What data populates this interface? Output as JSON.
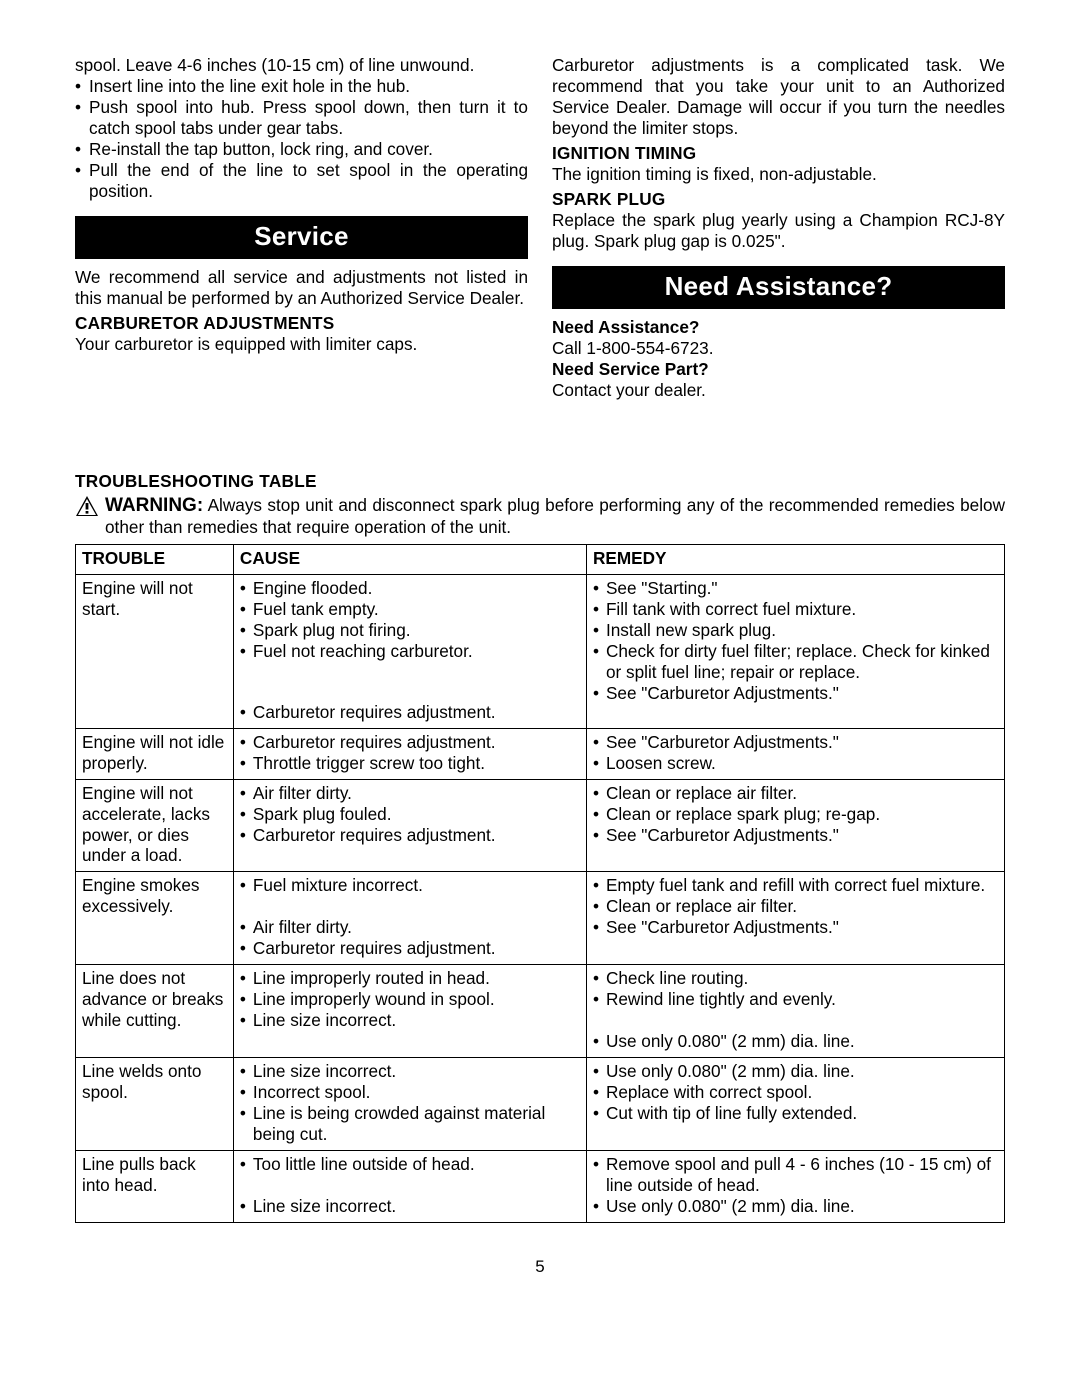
{
  "leftCol": {
    "continuation": "spool. Leave 4-6 inches (10-15 cm) of line unwound.",
    "bullets": [
      "Insert line into the line exit hole in the hub.",
      "Push spool into hub. Press spool down, then turn it to catch spool tabs under gear tabs.",
      "Re-install the tap button, lock ring, and cover.",
      "Pull the end of the line to set spool in the operating position."
    ],
    "serviceBar": "Service",
    "serviceText": "We recommend all service and adjustments not listed in this manual be performed by an Authorized Service Dealer.",
    "carbHead": "CARBURETOR ADJUSTMENTS",
    "carbText": "Your carburetor is equipped with limiter caps."
  },
  "rightCol": {
    "carbAdj": "Carburetor adjustments is a complicated task. We recommend that you take your unit to an Authorized Service Dealer. Damage will occur if you turn the needles beyond the limiter stops.",
    "ignHead": "IGNITION TIMING",
    "ignText": "The ignition timing is fixed, non-adjustable.",
    "sparkHead": "SPARK PLUG",
    "sparkText": "Replace the spark plug yearly using a Champion RCJ-8Y plug. Spark plug gap is 0.025\".",
    "assistBar": "Need Assistance?",
    "na1": "Need Assistance?",
    "na2": "Call 1-800-554-6723.",
    "np1": "Need Service Part?",
    "np2": "Contact your dealer."
  },
  "tableTitle": "TROUBLESHOOTING TABLE",
  "warningLabel": "WARNING:",
  "warningText": "Always stop unit and disconnect spark plug before performing any of the recommended remedies below other than remedies that require operation of the unit.",
  "headers": {
    "c1": "TROUBLE",
    "c2": "CAUSE",
    "c3": "REMEDY"
  },
  "rows": [
    {
      "trouble": "Engine will not start.",
      "cause": [
        "Engine flooded.",
        "Fuel tank empty.",
        "Spark plug not firing.",
        "Fuel not reaching carburetor.",
        "Carburetor requires adjustment."
      ],
      "remedy": [
        "See \"Starting.\"",
        "Fill tank with correct fuel mixture.",
        "Install new spark plug.",
        "Check for dirty fuel filter; replace. Check for kinked or split fuel line; repair or replace.",
        "See \"Carburetor Adjustments.\""
      ],
      "spacerBefore": 3
    },
    {
      "trouble": "Engine will not idle properly.",
      "cause": [
        "Carburetor requires adjustment.",
        "Throttle trigger screw too tight."
      ],
      "remedy": [
        "See \"Carburetor Adjustments.\"",
        "Loosen screw."
      ]
    },
    {
      "trouble": "Engine will not accelerate, lacks power, or dies under a load.",
      "cause": [
        "Air filter dirty.",
        "Spark plug fouled.",
        "Carburetor requires adjustment."
      ],
      "remedy": [
        "Clean or replace air filter.",
        "Clean or replace spark plug; re-gap.",
        "See \"Carburetor Adjustments.\""
      ]
    },
    {
      "trouble": "Engine smokes excessively.",
      "cause": [
        "Fuel mixture incorrect.",
        "Air filter dirty.",
        "Carburetor requires adjustment."
      ],
      "remedy": [
        "Empty fuel tank and refill with correct fuel mixture.",
        "Clean or replace air filter.",
        "See \"Carburetor Adjustments.\""
      ],
      "spacerBefore": 1
    },
    {
      "trouble": "Line does not advance or breaks while cutting.",
      "cause": [
        "Line improperly routed in head.",
        "Line improperly wound in spool.",
        "Line size incorrect."
      ],
      "remedy": [
        "Check line routing.",
        "Rewind line tightly and evenly.",
        "Use only 0.080\" (2 mm) dia. line."
      ],
      "spacerBefore": 2
    },
    {
      "trouble": "Line welds onto spool.",
      "cause": [
        "Line size incorrect.",
        "Incorrect spool.",
        "Line is being crowded against material being cut."
      ],
      "remedy": [
        "Use only 0.080\" (2 mm) dia. line.",
        "Replace with correct spool.",
        "Cut with tip of line fully extended."
      ]
    },
    {
      "trouble": "Line pulls back into head.",
      "cause": [
        "Too little line outside of head.",
        "Line size incorrect."
      ],
      "remedy": [
        "Remove spool and pull 4 - 6 inches (10 - 15 cm) of line outside of head.",
        "Use only 0.080\" (2 mm) dia. line."
      ],
      "spacerBefore": 0
    }
  ],
  "pageNumber": "5",
  "colors": {
    "barBg": "#000000",
    "barFg": "#ffffff"
  }
}
